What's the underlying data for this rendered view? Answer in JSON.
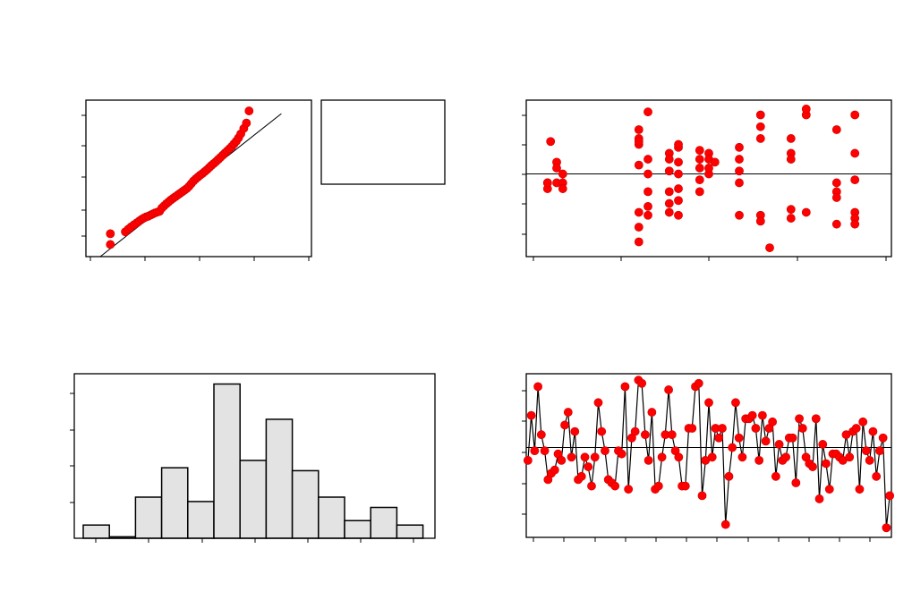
{
  "colors": {
    "point": "#ff0000",
    "bar_fill": "#e3e3e3",
    "line": "#000000",
    "background": "#ffffff"
  },
  "chart_data": [
    {
      "type": "scatter",
      "subtype": "normal-probability-plot",
      "x": [
        -1.95,
        -1.95,
        -1.55,
        -1.47,
        -1.4,
        -1.32,
        -1.25,
        -1.18,
        -1.12,
        -1.06,
        -1.0,
        -0.94,
        -0.88,
        -0.82,
        -0.76,
        -0.7,
        -0.64,
        -0.58,
        -0.52,
        -0.46,
        -0.4,
        -0.34,
        -0.28,
        -0.22,
        -0.16,
        -0.1,
        -0.04,
        0.02,
        0.08,
        0.14,
        0.2,
        0.26,
        0.32,
        0.38,
        0.44,
        0.5,
        0.56,
        0.62,
        0.68,
        0.74,
        0.8,
        0.86,
        0.92,
        0.98,
        1.04,
        1.1,
        1.16,
        1.22,
        1.28,
        1.34,
        1.4,
        1.46,
        1.52,
        1.6,
        1.67,
        1.74
      ],
      "y": [
        -1.95,
        -1.55,
        -1.48,
        -1.38,
        -1.3,
        -1.22,
        -1.15,
        -1.08,
        -1.02,
        -0.97,
        -0.93,
        -0.9,
        -0.86,
        -0.82,
        -0.78,
        -0.75,
        -0.72,
        -0.6,
        -0.52,
        -0.44,
        -0.37,
        -0.3,
        -0.24,
        -0.18,
        -0.12,
        -0.06,
        0.0,
        0.06,
        0.12,
        0.2,
        0.3,
        0.4,
        0.48,
        0.55,
        0.62,
        0.68,
        0.75,
        0.82,
        0.9,
        0.98,
        1.05,
        1.12,
        1.2,
        1.28,
        1.36,
        1.44,
        1.52,
        1.6,
        1.68,
        1.78,
        1.88,
        2.0,
        2.15,
        2.35,
        2.55,
        3.0
      ],
      "reference_line": {
        "x": [
          -2.4,
          2.6
        ],
        "y": [
          -2.6,
          2.9
        ]
      },
      "xlim": [
        -2.6,
        3.4
      ],
      "ylim": [
        -2.4,
        3.4
      ],
      "legend": "right"
    },
    {
      "type": "scatter",
      "subtype": "residuals-vs-fits",
      "x": [
        5.5,
        5.5,
        5.5,
        5.8,
        5.8,
        5.8,
        6.0,
        6.0,
        6.0,
        5.6,
        8.5,
        8.5,
        8.5,
        8.8,
        8.8,
        8.8,
        8.8,
        8.8,
        8.5,
        8.5,
        8.5,
        8.5,
        8.5,
        8.8,
        9.5,
        9.5,
        9.5,
        9.5,
        9.5,
        9.5,
        9.8,
        9.8,
        9.8,
        9.8,
        9.8,
        9.8,
        9.8,
        10.5,
        10.5,
        10.5,
        10.5,
        10.5,
        10.8,
        10.8,
        10.8,
        10.8,
        11.8,
        11.8,
        11.8,
        11.8,
        11.8,
        12.5,
        12.5,
        12.5,
        12.5,
        12.5,
        12.8,
        13.5,
        13.5,
        13.5,
        13.5,
        13.5,
        14.0,
        14.0,
        14.0,
        15.0,
        15.0,
        15.0,
        15.0,
        15.0,
        15.6,
        15.6,
        15.6,
        15.6,
        15.6,
        15.6,
        11.0
      ],
      "y": [
        -0.3,
        -0.5,
        -0.3,
        0.4,
        0.2,
        -0.3,
        0.0,
        -0.3,
        -0.5,
        1.1,
        1.2,
        1.0,
        0.3,
        0.0,
        0.5,
        -0.6,
        -1.1,
        -1.4,
        -1.8,
        1.1,
        1.5,
        -1.3,
        -2.3,
        2.1,
        0.7,
        0.5,
        0.1,
        -0.6,
        -1.0,
        -1.3,
        0.9,
        0.4,
        0.0,
        -0.5,
        -0.9,
        -1.4,
        1.0,
        0.8,
        0.5,
        0.2,
        -0.2,
        -0.6,
        0.7,
        0.5,
        0.0,
        0.2,
        0.9,
        0.5,
        0.1,
        -0.3,
        -1.4,
        2.0,
        1.6,
        1.2,
        -1.4,
        -1.6,
        -2.5,
        1.2,
        0.7,
        0.5,
        -1.2,
        -1.5,
        2.0,
        2.2,
        -1.3,
        1.5,
        -0.3,
        -0.6,
        -0.8,
        -1.7,
        2.0,
        0.7,
        -0.2,
        -1.3,
        -1.5,
        -1.7,
        0.4
      ],
      "xlim": [
        4.8,
        16.8
      ],
      "ylim": [
        -2.8,
        2.5
      ],
      "reference_y": 0
    },
    {
      "type": "bar",
      "subtype": "histogram",
      "values": [
        0.9,
        0.1,
        2.8,
        4.8,
        2.5,
        10.5,
        5.3,
        8.1,
        4.6,
        2.8,
        1.2,
        2.1,
        0.9
      ],
      "ylim": [
        0,
        11.2
      ]
    },
    {
      "type": "line",
      "subtype": "residuals-vs-order",
      "values": [
        -0.4,
        1.0,
        -0.1,
        1.9,
        0.4,
        -0.1,
        -1.0,
        -0.8,
        -0.7,
        -0.2,
        -0.4,
        0.7,
        1.1,
        -0.3,
        0.5,
        -1.0,
        -0.9,
        -0.3,
        -0.6,
        -1.2,
        -0.3,
        1.4,
        0.5,
        -0.1,
        -1.0,
        -1.1,
        -1.2,
        -0.1,
        -0.2,
        1.9,
        -1.3,
        0.3,
        0.5,
        2.1,
        2.0,
        0.4,
        -0.4,
        1.1,
        -1.3,
        -1.2,
        -0.3,
        0.4,
        1.8,
        0.4,
        -0.1,
        -0.3,
        -1.2,
        -1.2,
        0.6,
        0.6,
        1.9,
        2.0,
        -1.5,
        -0.4,
        1.4,
        -0.3,
        0.6,
        0.3,
        0.6,
        -2.4,
        -0.9,
        0.0,
        1.4,
        0.3,
        -0.3,
        0.9,
        0.9,
        1.0,
        0.6,
        -0.4,
        1.0,
        0.2,
        0.6,
        0.8,
        -0.9,
        0.1,
        -0.4,
        -0.3,
        0.3,
        0.3,
        -1.1,
        0.9,
        0.6,
        -0.3,
        -0.5,
        -0.6,
        0.9,
        -1.6,
        0.1,
        -0.5,
        -1.3,
        -0.2,
        -0.2,
        -0.3,
        -0.4,
        0.4,
        -0.3,
        0.5,
        0.6,
        -1.3,
        0.8,
        -0.1,
        -0.4,
        0.5,
        -0.9,
        -0.1,
        0.3,
        -2.5,
        -1.5
      ],
      "xlim": [
        0.5,
        109.5
      ],
      "ylim": [
        -2.8,
        2.3
      ],
      "reference_y": 0
    }
  ]
}
